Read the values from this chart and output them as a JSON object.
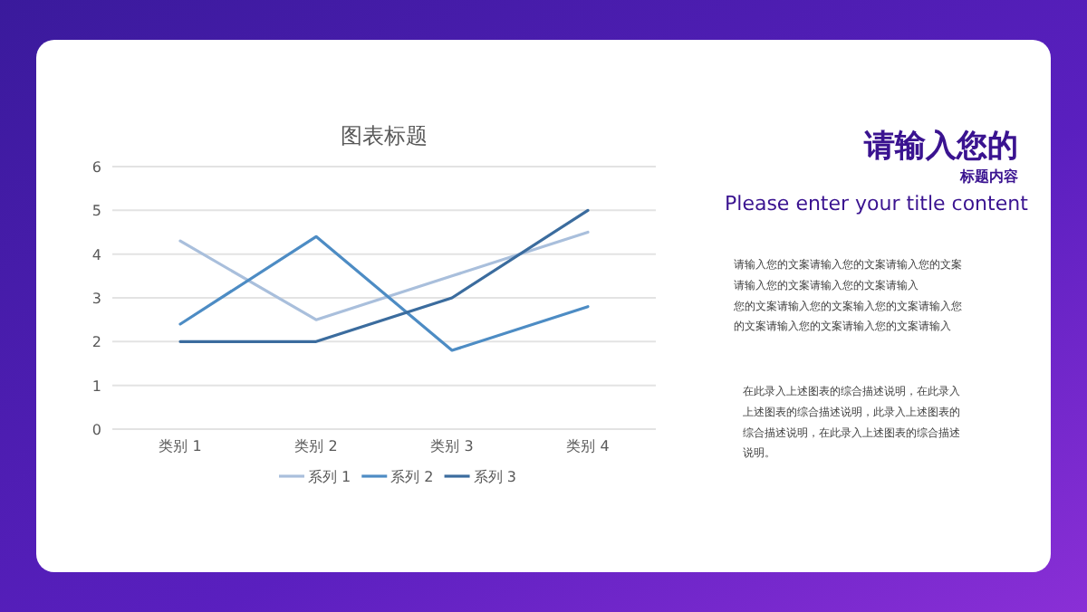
{
  "chart_data": [
    {
      "type": "line",
      "title": "图表标题",
      "categories": [
        "类别 1",
        "类别 2",
        "类别 3",
        "类别 4"
      ],
      "series": [
        {
          "name": "系列 1",
          "color": "#a9bfdc",
          "values": [
            4.3,
            2.5,
            3.5,
            4.5
          ]
        },
        {
          "name": "系列 2",
          "color": "#4d8cc4",
          "values": [
            2.4,
            4.4,
            1.8,
            2.8
          ]
        },
        {
          "name": "系列 3",
          "color": "#3b6c9e",
          "values": [
            2,
            2,
            3,
            5
          ]
        }
      ],
      "ylim": [
        0,
        6
      ],
      "yticks": [
        0,
        1,
        2,
        3,
        4,
        5,
        6
      ],
      "grid": "y",
      "legend": "bottom"
    },
    {
      "type": "other",
      "title": "请输入您的",
      "subtitle": "标题内容",
      "annotations": [
        "Please enter your title content",
        "请输入您的文案请输入您的文案请输入您的文案",
        "请输入您的文案请输入您的文案请输入",
        "您的文案请输入您的文案输入您的文案请输入您",
        "的文案请输入您的文案请输入您的文案请输入",
        "在此录入上述图表的综合描述说明，在此录入",
        "上述图表的综合描述说明，此录入上述图表的",
        "综合描述说明，在此录入上述图表的综合描述",
        "说明。"
      ]
    }
  ]
}
